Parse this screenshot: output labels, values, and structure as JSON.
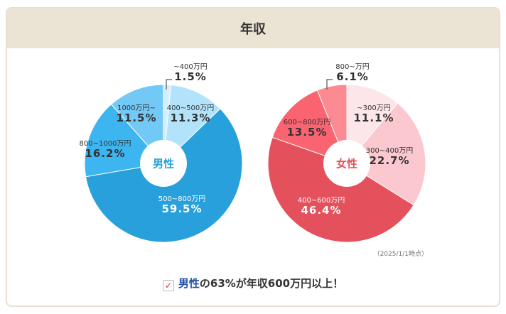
{
  "title": "年収",
  "chart_data": [
    {
      "type": "pie",
      "center_label": "男性",
      "center_color": "#27a0db",
      "categories": [
        "~400万円",
        "400~500万円",
        "500~800万円",
        "800~1000万円",
        "1000万円~"
      ],
      "values": [
        1.5,
        11.3,
        59.5,
        16.2,
        11.5
      ],
      "labels": [
        "1.5%",
        "11.3%",
        "59.5%",
        "16.2%",
        "11.5%"
      ],
      "colors": [
        "#d4eefc",
        "#b3e3fb",
        "#27a0db",
        "#3db5f0",
        "#72c9f5"
      ]
    },
    {
      "type": "pie",
      "center_label": "女性",
      "center_color": "#e4505b",
      "categories": [
        "~300万円",
        "300~400万円",
        "400~600万円",
        "600~800万円",
        "800~万円"
      ],
      "values": [
        11.1,
        22.7,
        46.4,
        13.5,
        6.1
      ],
      "labels": [
        "11.1%",
        "22.7%",
        "46.4%",
        "13.5%",
        "6.1%"
      ],
      "colors": [
        "#fde6ea",
        "#fcc8cf",
        "#e4505b",
        "#f96470",
        "#fb8a92"
      ]
    }
  ],
  "note": "（2025/1/1時点）",
  "caption": {
    "highlight": "男性",
    "rest": "の63%が年収600万円以上！"
  }
}
